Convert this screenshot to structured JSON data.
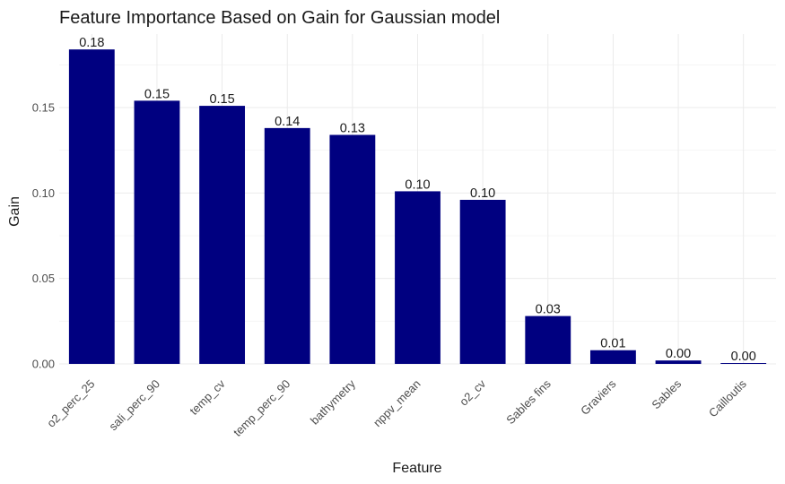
{
  "chart_data": {
    "type": "bar",
    "title": "Feature Importance Based on Gain for Gaussian model",
    "xlabel": "Feature",
    "ylabel": "Gain",
    "categories": [
      "o2_perc_25",
      "sali_perc_90",
      "temp_cv",
      "temp_perc_90",
      "bathymetry",
      "nppv_mean",
      "o2_cv",
      "Sables fins",
      "Graviers",
      "Sables",
      "Cailloutis"
    ],
    "values": [
      0.184,
      0.154,
      0.151,
      0.138,
      0.134,
      0.101,
      0.096,
      0.028,
      0.008,
      0.002,
      0.0005
    ],
    "data_labels": [
      "0.18",
      "0.15",
      "0.15",
      "0.14",
      "0.13",
      "0.10",
      "0.10",
      "0.03",
      "0.01",
      "0.00",
      "0.00"
    ],
    "y_ticks": [
      0.0,
      0.05,
      0.1,
      0.15
    ],
    "y_tick_labels": [
      "0.00",
      "0.05",
      "0.10",
      "0.15"
    ],
    "ylim": [
      0,
      0.193
    ],
    "grid": true,
    "legend": "none",
    "bar_color": "#000080"
  }
}
